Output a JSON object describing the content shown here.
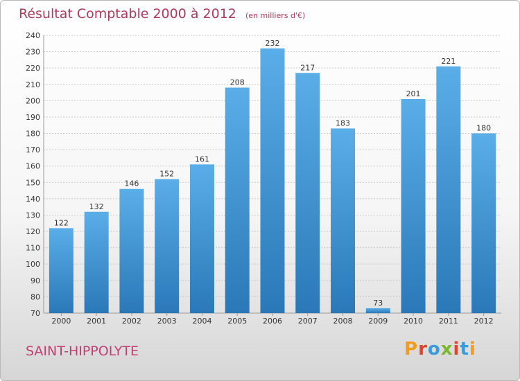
{
  "header": {
    "title": "Résultat Comptable 2000 à 2012",
    "unit": "(en milliers d'€)"
  },
  "footer": {
    "commune": "SAINT-HIPPOLYTE",
    "logo": "Proxiti"
  },
  "colors": {
    "title": "#b03a5a",
    "bar_top": "#5aaee8",
    "bar_bottom": "#2a78b8",
    "logo_letters": [
      "#f29c1f",
      "#e0452b",
      "#3a9bd8",
      "#7cb82f",
      "#e0452b",
      "#3a9bd8",
      "#f29c1f"
    ]
  },
  "chart_data": {
    "type": "bar",
    "title": "Résultat Comptable 2000 à 2012",
    "xlabel": "",
    "ylabel": "",
    "categories": [
      "2000",
      "2001",
      "2002",
      "2003",
      "2004",
      "2005",
      "2006",
      "2007",
      "2008",
      "2009",
      "2010",
      "2011",
      "2012"
    ],
    "values": [
      122,
      132,
      146,
      152,
      161,
      208,
      232,
      217,
      183,
      73,
      201,
      221,
      180
    ],
    "ylim": [
      70,
      240
    ],
    "yticks": [
      70,
      80,
      90,
      100,
      110,
      120,
      130,
      140,
      150,
      160,
      170,
      180,
      190,
      200,
      210,
      220,
      230,
      240
    ],
    "grid": true
  }
}
